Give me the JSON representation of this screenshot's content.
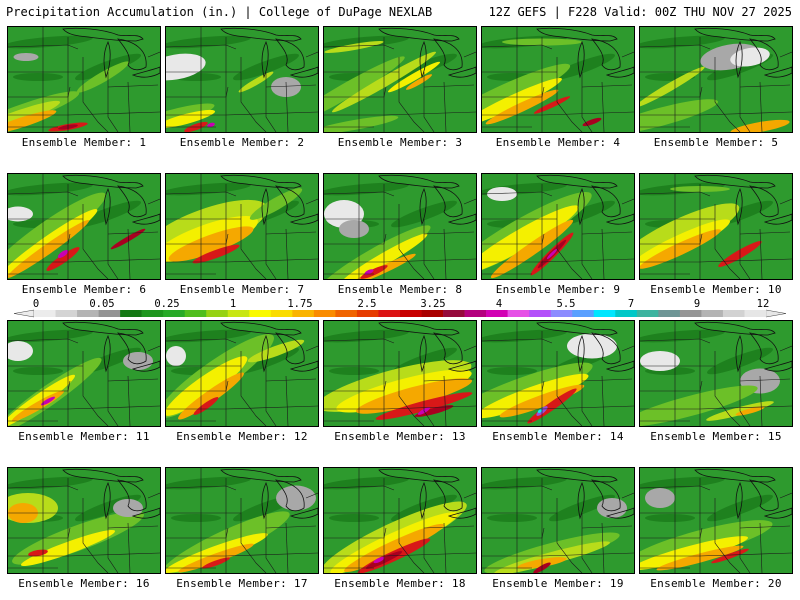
{
  "header": {
    "left": "Precipitation Accumulation (in.) | College of DuPage NEXLAB",
    "right": "12Z GEFS | F228 Valid: 00Z THU NOV 27 2025"
  },
  "caption_prefix": "Ensemble Member:",
  "members": [
    {
      "id": 1,
      "label": "Ensemble Member: 1"
    },
    {
      "id": 2,
      "label": "Ensemble Member: 2"
    },
    {
      "id": 3,
      "label": "Ensemble Member: 3"
    },
    {
      "id": 4,
      "label": "Ensemble Member: 4"
    },
    {
      "id": 5,
      "label": "Ensemble Member: 5"
    },
    {
      "id": 6,
      "label": "Ensemble Member: 6"
    },
    {
      "id": 7,
      "label": "Ensemble Member: 7"
    },
    {
      "id": 8,
      "label": "Ensemble Member: 8"
    },
    {
      "id": 9,
      "label": "Ensemble Member: 9"
    },
    {
      "id": 10,
      "label": "Ensemble Member: 10"
    },
    {
      "id": 11,
      "label": "Ensemble Member: 11"
    },
    {
      "id": 12,
      "label": "Ensemble Member: 12"
    },
    {
      "id": 13,
      "label": "Ensemble Member: 13"
    },
    {
      "id": 14,
      "label": "Ensemble Member: 14"
    },
    {
      "id": 15,
      "label": "Ensemble Member: 15"
    },
    {
      "id": 16,
      "label": "Ensemble Member: 16"
    },
    {
      "id": 17,
      "label": "Ensemble Member: 17"
    },
    {
      "id": 18,
      "label": "Ensemble Member: 18"
    },
    {
      "id": 19,
      "label": "Ensemble Member: 19"
    },
    {
      "id": 20,
      "label": "Ensemble Member: 20"
    }
  ],
  "colorbar": {
    "labels": [
      "0",
      "0.05",
      "0.25",
      "1",
      "1.75",
      "2.5",
      "3.25",
      "4",
      "5.5",
      "7",
      "9",
      "12"
    ],
    "colors": [
      "#ececec",
      "#d4d4d4",
      "#b4b4b4",
      "#949494",
      "#147814",
      "#1e961e",
      "#28aa28",
      "#50be1e",
      "#96d214",
      "#c8e614",
      "#fafa00",
      "#fadc00",
      "#fab400",
      "#fa8c00",
      "#f06400",
      "#e63c00",
      "#dc1414",
      "#c80000",
      "#aa0000",
      "#960a3c",
      "#b4007e",
      "#d200b4",
      "#e650e6",
      "#b450fa",
      "#8c8cff",
      "#5aa0ff",
      "#00e6ff",
      "#00c8c8",
      "#3cb4a0",
      "#6e9696",
      "#969696",
      "#b4b4b4",
      "#d2d2d2",
      "#e6e6e6"
    ]
  },
  "palette": {
    "white": "#e8e8e8",
    "gray": "#a8a8a8",
    "dgreen": "#1a7a1a",
    "green": "#2e9a2e",
    "lgreen": "#6cc028",
    "ygreen": "#b8dc1a",
    "yellow": "#f4f000",
    "orange": "#f5a800",
    "dorange": "#ef6a00",
    "red": "#d81818",
    "dred": "#a80020",
    "magenta": "#c800b4",
    "purple": "#9650dc",
    "cyan": "#14e6f0"
  },
  "patterns": [
    [
      [
        "lgreen",
        10,
        88,
        130,
        18,
        -20
      ],
      [
        "ygreen",
        5,
        92,
        100,
        13,
        -20
      ],
      [
        "orange",
        15,
        95,
        70,
        10,
        -18
      ],
      [
        "red",
        60,
        100,
        40,
        6,
        -10
      ],
      [
        "dred",
        60,
        100,
        20,
        4,
        -10
      ],
      [
        "gray",
        18,
        30,
        25,
        8,
        0
      ],
      [
        "lgreen",
        95,
        50,
        60,
        10,
        -30
      ]
    ],
    [
      [
        "white",
        10,
        40,
        60,
        25,
        -10
      ],
      [
        "lgreen",
        5,
        90,
        90,
        14,
        -15
      ],
      [
        "yellow",
        20,
        92,
        60,
        10,
        -15
      ],
      [
        "red",
        30,
        100,
        25,
        6,
        -20
      ],
      [
        "magenta",
        45,
        98,
        8,
        4,
        -20
      ],
      [
        "gray",
        120,
        60,
        30,
        20,
        0
      ],
      [
        "ygreen",
        90,
        55,
        40,
        6,
        -30
      ]
    ],
    [
      [
        "lgreen",
        20,
        65,
        140,
        15,
        -30
      ],
      [
        "ygreen",
        60,
        55,
        120,
        10,
        -30
      ],
      [
        "yellow",
        90,
        50,
        60,
        7,
        -30
      ],
      [
        "orange",
        95,
        55,
        30,
        5,
        -30
      ],
      [
        "ygreen",
        30,
        20,
        60,
        6,
        -10
      ],
      [
        "lgreen",
        30,
        98,
        90,
        10,
        -10
      ]
    ],
    [
      [
        "lgreen",
        20,
        70,
        150,
        22,
        -25
      ],
      [
        "yellow",
        30,
        75,
        110,
        13,
        -25
      ],
      [
        "orange",
        40,
        80,
        80,
        9,
        -25
      ],
      [
        "red",
        70,
        78,
        40,
        5,
        -25
      ],
      [
        "lgreen",
        60,
        15,
        80,
        7,
        0
      ],
      [
        "dred",
        110,
        95,
        20,
        5,
        -20
      ]
    ],
    [
      [
        "gray",
        90,
        30,
        60,
        25,
        -10
      ],
      [
        "white",
        110,
        30,
        40,
        18,
        -10
      ],
      [
        "lgreen",
        20,
        90,
        120,
        18,
        -15
      ],
      [
        "orange",
        120,
        100,
        60,
        10,
        -10
      ],
      [
        "ygreen",
        30,
        60,
        80,
        8,
        -30
      ]
    ],
    [
      [
        "lgreen",
        40,
        60,
        140,
        25,
        -35
      ],
      [
        "yellow",
        40,
        70,
        120,
        15,
        -35
      ],
      [
        "orange",
        40,
        75,
        100,
        10,
        -35
      ],
      [
        "red",
        55,
        85,
        40,
        8,
        -35
      ],
      [
        "magenta",
        55,
        80,
        12,
        5,
        -35
      ],
      [
        "white",
        10,
        40,
        30,
        15,
        0
      ],
      [
        "dred",
        120,
        65,
        40,
        5,
        -30
      ]
    ],
    [
      [
        "ygreen",
        40,
        55,
        130,
        40,
        -20
      ],
      [
        "yellow",
        40,
        65,
        110,
        28,
        -20
      ],
      [
        "orange",
        45,
        70,
        90,
        18,
        -20
      ],
      [
        "red",
        50,
        80,
        50,
        8,
        -20
      ],
      [
        "lgreen",
        110,
        30,
        60,
        12,
        -30
      ]
    ],
    [
      [
        "white",
        20,
        40,
        40,
        28,
        0
      ],
      [
        "gray",
        30,
        55,
        30,
        18,
        0
      ],
      [
        "lgreen",
        50,
        85,
        130,
        20,
        -30
      ],
      [
        "yellow",
        60,
        85,
        100,
        12,
        -30
      ],
      [
        "orange",
        60,
        95,
        70,
        8,
        -25
      ],
      [
        "red",
        50,
        98,
        30,
        6,
        -25
      ],
      [
        "magenta",
        45,
        98,
        10,
        4,
        -25
      ]
    ],
    [
      [
        "lgreen",
        40,
        60,
        160,
        30,
        -30
      ],
      [
        "yellow",
        40,
        65,
        130,
        20,
        -30
      ],
      [
        "orange",
        50,
        75,
        100,
        12,
        -35
      ],
      [
        "red",
        70,
        80,
        60,
        8,
        -45
      ],
      [
        "dred",
        70,
        80,
        40,
        5,
        -45
      ],
      [
        "magenta",
        70,
        80,
        14,
        3,
        -45
      ],
      [
        "white",
        20,
        20,
        30,
        14,
        0
      ]
    ],
    [
      [
        "ygreen",
        40,
        60,
        130,
        30,
        -25
      ],
      [
        "yellow",
        40,
        70,
        110,
        18,
        -25
      ],
      [
        "orange",
        40,
        75,
        90,
        12,
        -25
      ],
      [
        "red",
        100,
        80,
        50,
        8,
        -30
      ],
      [
        "lgreen",
        60,
        15,
        60,
        6,
        0
      ]
    ],
    [
      [
        "white",
        10,
        30,
        30,
        20,
        0
      ],
      [
        "lgreen",
        40,
        75,
        130,
        20,
        -35
      ],
      [
        "yellow",
        30,
        80,
        90,
        12,
        -35
      ],
      [
        "orange",
        30,
        85,
        60,
        8,
        -30
      ],
      [
        "magenta",
        40,
        80,
        16,
        4,
        -30
      ],
      [
        "gray",
        130,
        40,
        30,
        18,
        0
      ]
    ],
    [
      [
        "lgreen",
        50,
        55,
        140,
        30,
        -35
      ],
      [
        "yellow",
        40,
        65,
        100,
        20,
        -35
      ],
      [
        "orange",
        45,
        75,
        80,
        12,
        -35
      ],
      [
        "red",
        40,
        85,
        30,
        6,
        -35
      ],
      [
        "white",
        10,
        35,
        20,
        20,
        0
      ],
      [
        "ygreen",
        110,
        30,
        60,
        10,
        -20
      ]
    ],
    [
      [
        "ygreen",
        70,
        65,
        160,
        32,
        -15
      ],
      [
        "yellow",
        80,
        70,
        140,
        24,
        -15
      ],
      [
        "orange",
        90,
        75,
        120,
        18,
        -15
      ],
      [
        "red",
        100,
        85,
        100,
        10,
        -15
      ],
      [
        "dred",
        110,
        90,
        40,
        6,
        -15
      ],
      [
        "magenta",
        100,
        90,
        14,
        4,
        -30
      ]
    ],
    [
      [
        "white",
        110,
        25,
        50,
        25,
        0
      ],
      [
        "lgreen",
        40,
        70,
        150,
        26,
        -20
      ],
      [
        "yellow",
        50,
        75,
        120,
        18,
        -20
      ],
      [
        "orange",
        60,
        80,
        90,
        12,
        -20
      ],
      [
        "red",
        70,
        85,
        60,
        8,
        -35
      ],
      [
        "purple",
        60,
        90,
        14,
        5,
        -40
      ],
      [
        "cyan",
        58,
        90,
        5,
        3,
        -40
      ]
    ],
    [
      [
        "white",
        20,
        40,
        40,
        20,
        0
      ],
      [
        "gray",
        120,
        60,
        40,
        25,
        0
      ],
      [
        "lgreen",
        50,
        85,
        140,
        20,
        -15
      ],
      [
        "ygreen",
        100,
        90,
        70,
        8,
        -15
      ],
      [
        "orange",
        110,
        90,
        30,
        5,
        -15
      ]
    ],
    [
      [
        "ygreen",
        20,
        40,
        60,
        30,
        0
      ],
      [
        "orange",
        15,
        45,
        30,
        20,
        0
      ],
      [
        "lgreen",
        70,
        70,
        140,
        25,
        -20
      ],
      [
        "yellow",
        60,
        80,
        100,
        12,
        -20
      ],
      [
        "red",
        30,
        85,
        20,
        6,
        -10
      ],
      [
        "gray",
        120,
        40,
        30,
        18,
        0
      ]
    ],
    [
      [
        "gray",
        130,
        30,
        40,
        25,
        0
      ],
      [
        "lgreen",
        60,
        75,
        140,
        25,
        -25
      ],
      [
        "yellow",
        50,
        85,
        110,
        14,
        -20
      ],
      [
        "orange",
        50,
        90,
        80,
        9,
        -20
      ],
      [
        "red",
        50,
        95,
        30,
        5,
        -20
      ]
    ],
    [
      [
        "ygreen",
        70,
        70,
        160,
        30,
        -25
      ],
      [
        "yellow",
        70,
        75,
        140,
        20,
        -25
      ],
      [
        "orange",
        70,
        80,
        110,
        14,
        -25
      ],
      [
        "red",
        70,
        88,
        80,
        10,
        -25
      ],
      [
        "dred",
        60,
        92,
        40,
        6,
        -25
      ],
      [
        "magenta",
        55,
        92,
        12,
        4,
        -25
      ]
    ],
    [
      [
        "gray",
        130,
        40,
        30,
        20,
        0
      ],
      [
        "lgreen",
        70,
        85,
        140,
        20,
        -15
      ],
      [
        "ygreen",
        70,
        90,
        120,
        12,
        -15
      ],
      [
        "orange",
        60,
        95,
        50,
        8,
        -10
      ],
      [
        "dred",
        60,
        100,
        20,
        5,
        -30
      ]
    ],
    [
      [
        "gray",
        20,
        30,
        30,
        20,
        0
      ],
      [
        "lgreen",
        60,
        75,
        150,
        25,
        -15
      ],
      [
        "yellow",
        50,
        85,
        120,
        14,
        -15
      ],
      [
        "orange",
        60,
        90,
        90,
        9,
        -15
      ],
      [
        "red",
        90,
        88,
        40,
        5,
        -20
      ]
    ]
  ]
}
